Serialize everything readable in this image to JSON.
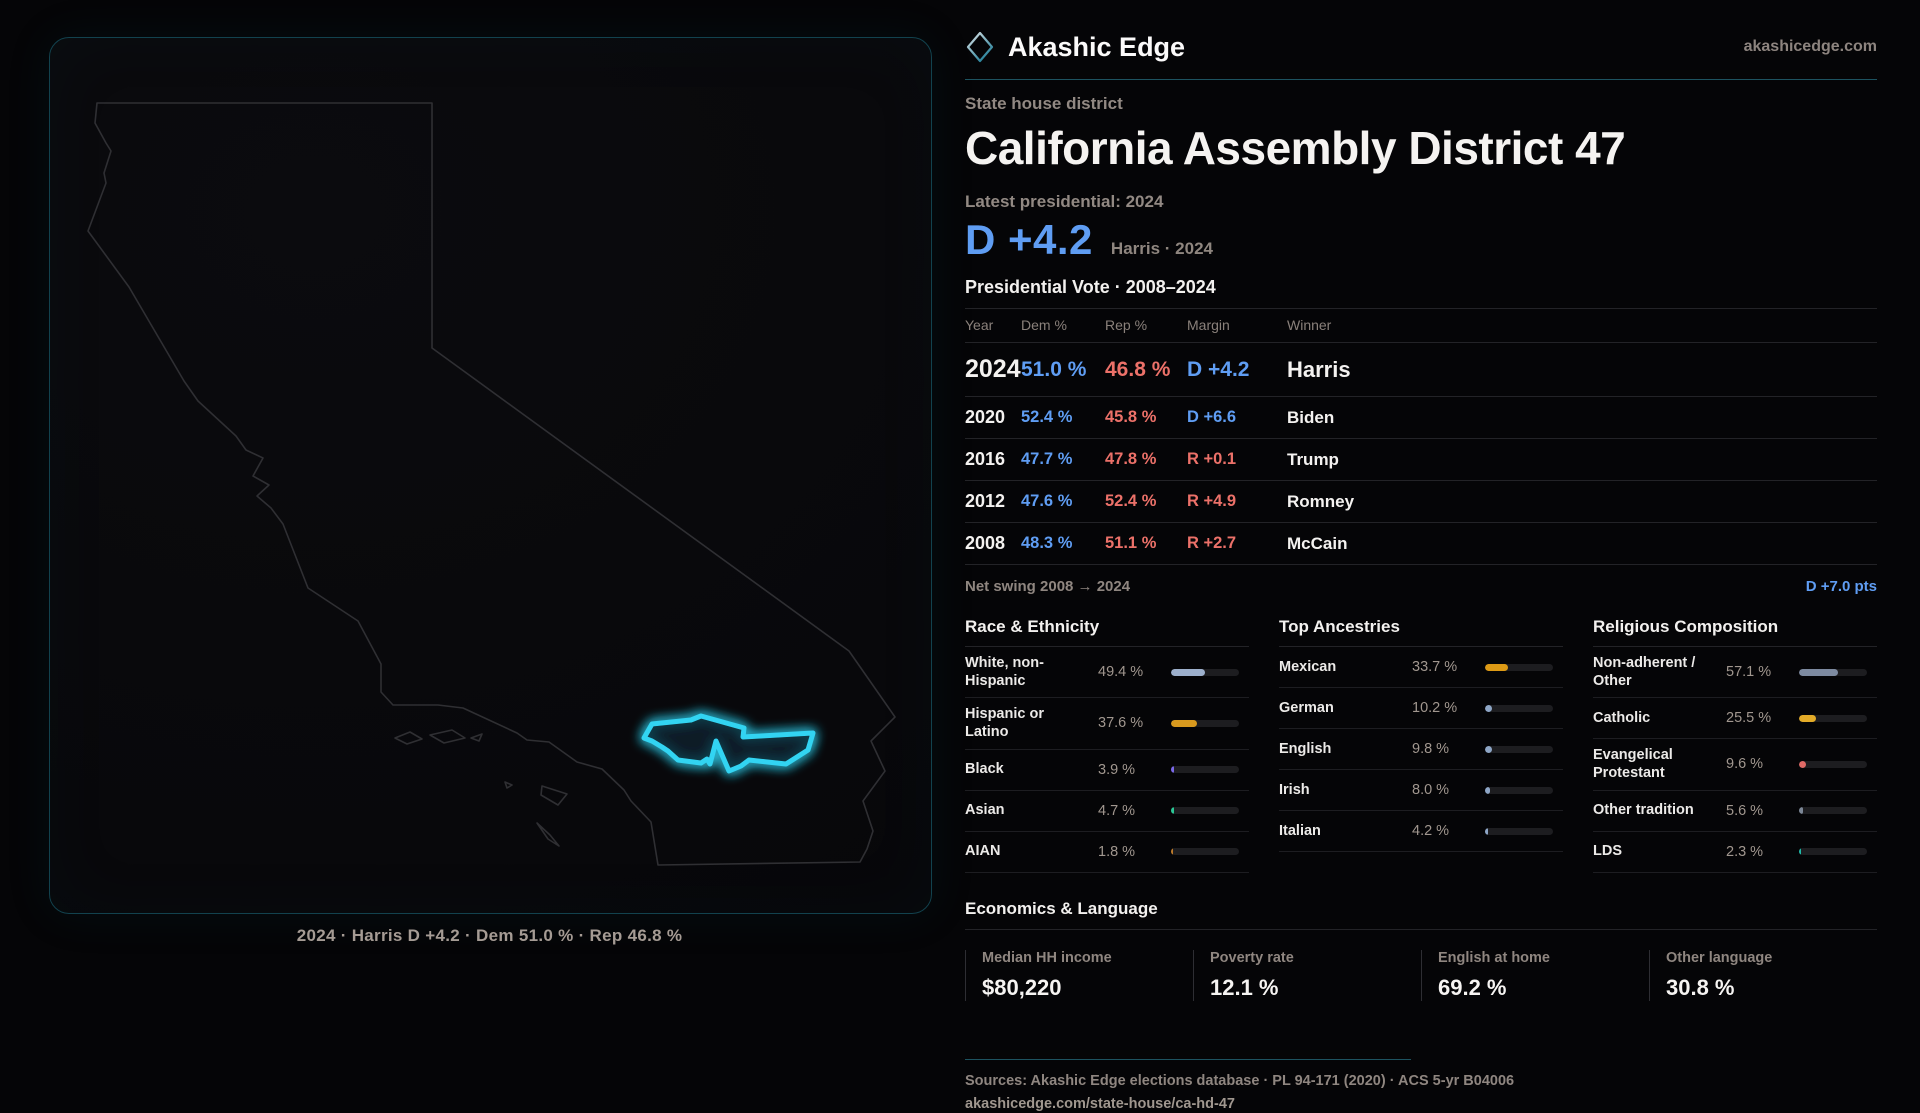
{
  "brand": {
    "name": "Akashic Edge",
    "domain": "akashicedge.com"
  },
  "map": {
    "caption": "2024 · Harris D +4.2 · Dem 51.0 % · Rep 46.8 %",
    "district_outline_color": "#33d4f2"
  },
  "header": {
    "kicker": "State house district",
    "title": "California Assembly District 47",
    "latest_label": "Latest presidential: 2024",
    "headline_margin": "D +4.2",
    "headline_detail": "Harris · 2024"
  },
  "table": {
    "title": "Presidential Vote · 2008–2024",
    "columns": [
      "Year",
      "Dem %",
      "Rep %",
      "Margin",
      "Winner"
    ],
    "rows": [
      {
        "year": "2024",
        "dem": "51.0 %",
        "rep": "46.8 %",
        "margin": "D +4.2",
        "margin_party": "D",
        "winner": "Harris",
        "featured": true
      },
      {
        "year": "2020",
        "dem": "52.4 %",
        "rep": "45.8 %",
        "margin": "D +6.6",
        "margin_party": "D",
        "winner": "Biden",
        "featured": false
      },
      {
        "year": "2016",
        "dem": "47.7 %",
        "rep": "47.8 %",
        "margin": "R +0.1",
        "margin_party": "R",
        "winner": "Trump",
        "featured": false
      },
      {
        "year": "2012",
        "dem": "47.6 %",
        "rep": "52.4 %",
        "margin": "R +4.9",
        "margin_party": "R",
        "winner": "Romney",
        "featured": false
      },
      {
        "year": "2008",
        "dem": "48.3 %",
        "rep": "51.1 %",
        "margin": "R +2.7",
        "margin_party": "R",
        "winner": "McCain",
        "featured": false
      }
    ],
    "net_swing_label": "Net swing 2008 → 2024",
    "net_swing_value": "D +7.0 pts"
  },
  "demographics": [
    {
      "title": "Race & Ethnicity",
      "rows": [
        {
          "label": "White, non-Hispanic",
          "value": "49.4 %",
          "pct": 49.4,
          "color": "#9db0cc"
        },
        {
          "label": "Hispanic or Latino",
          "value": "37.6 %",
          "pct": 37.6,
          "color": "#d99a1e"
        },
        {
          "label": "Black",
          "value": "3.9 %",
          "pct": 3.9,
          "color": "#7a68e8"
        },
        {
          "label": "Asian",
          "value": "4.7 %",
          "pct": 4.7,
          "color": "#2bc795"
        },
        {
          "label": "AIAN",
          "value": "1.8 %",
          "pct": 1.8,
          "color": "#bd7a2a"
        }
      ]
    },
    {
      "title": "Top Ancestries",
      "rows": [
        {
          "label": "Mexican",
          "value": "33.7 %",
          "pct": 33.7,
          "color": "#dd9a15"
        },
        {
          "label": "German",
          "value": "10.2 %",
          "pct": 10.2,
          "color": "#8ea6c6"
        },
        {
          "label": "English",
          "value": "9.8 %",
          "pct": 9.8,
          "color": "#8ea6c6"
        },
        {
          "label": "Irish",
          "value": "8.0 %",
          "pct": 8.0,
          "color": "#8ea6c6"
        },
        {
          "label": "Italian",
          "value": "4.2 %",
          "pct": 4.2,
          "color": "#8ea6c6"
        }
      ]
    },
    {
      "title": "Religious Composition",
      "rows": [
        {
          "label": "Non-adherent / Other",
          "value": "57.1 %",
          "pct": 57.1,
          "color": "#7d8aa0"
        },
        {
          "label": "Catholic",
          "value": "25.5 %",
          "pct": 25.5,
          "color": "#e3ab28"
        },
        {
          "label": "Evangelical Protestant",
          "value": "9.6 %",
          "pct": 9.6,
          "color": "#e06a66"
        },
        {
          "label": "Other tradition",
          "value": "5.6 %",
          "pct": 5.6,
          "color": "#7c8796"
        },
        {
          "label": "LDS",
          "value": "2.3 %",
          "pct": 2.3,
          "color": "#1fb9a8"
        }
      ]
    }
  ],
  "economics": {
    "title": "Economics & Language",
    "stats": [
      {
        "label": "Median HH income",
        "value": "$80,220"
      },
      {
        "label": "Poverty rate",
        "value": "12.1 %"
      },
      {
        "label": "English at home",
        "value": "69.2 %"
      },
      {
        "label": "Other language",
        "value": "30.8 %"
      }
    ]
  },
  "footer": {
    "sources": "Sources: Akashic Edge elections database · PL 94-171 (2020) · ACS 5-yr B04006",
    "permalink": "akashicedge.com/state-house/ca-hd-47"
  },
  "colors": {
    "dem": "#5f9df3",
    "rep": "#ec7169",
    "accent": "#33d4f2",
    "muted": "#8f8680"
  },
  "chart_data": [
    {
      "type": "table",
      "title": "Presidential Vote · 2008–2024",
      "columns": [
        "Year",
        "Dem %",
        "Rep %",
        "Margin",
        "Winner"
      ],
      "rows": [
        [
          "2024",
          51.0,
          46.8,
          "D +4.2",
          "Harris"
        ],
        [
          "2020",
          52.4,
          45.8,
          "D +6.6",
          "Biden"
        ],
        [
          "2016",
          47.7,
          47.8,
          "R +0.1",
          "Trump"
        ],
        [
          "2012",
          47.6,
          52.4,
          "R +4.9",
          "Romney"
        ],
        [
          "2008",
          48.3,
          51.1,
          "R +2.7",
          "McCain"
        ]
      ],
      "annotations": [
        "Net swing 2008 → 2024: D +7.0 pts",
        "Latest presidential: 2024, D +4.2, Harris"
      ]
    },
    {
      "type": "bar",
      "title": "Race & Ethnicity",
      "categories": [
        "White, non-Hispanic",
        "Hispanic or Latino",
        "Black",
        "Asian",
        "AIAN"
      ],
      "values": [
        49.4,
        37.6,
        3.9,
        4.7,
        1.8
      ],
      "xlabel": "",
      "ylabel": "%",
      "ylim": [
        0,
        100
      ]
    },
    {
      "type": "bar",
      "title": "Top Ancestries",
      "categories": [
        "Mexican",
        "German",
        "English",
        "Irish",
        "Italian"
      ],
      "values": [
        33.7,
        10.2,
        9.8,
        8.0,
        4.2
      ],
      "xlabel": "",
      "ylabel": "%",
      "ylim": [
        0,
        100
      ]
    },
    {
      "type": "bar",
      "title": "Religious Composition",
      "categories": [
        "Non-adherent / Other",
        "Catholic",
        "Evangelical Protestant",
        "Other tradition",
        "LDS"
      ],
      "values": [
        57.1,
        25.5,
        9.6,
        5.6,
        2.3
      ],
      "xlabel": "",
      "ylabel": "%",
      "ylim": [
        0,
        100
      ]
    },
    {
      "type": "table",
      "title": "Economics & Language",
      "columns": [
        "Median HH income",
        "Poverty rate",
        "English at home",
        "Other language"
      ],
      "rows": [
        [
          "$80,220",
          "12.1 %",
          "69.2 %",
          "30.8 %"
        ]
      ]
    }
  ]
}
